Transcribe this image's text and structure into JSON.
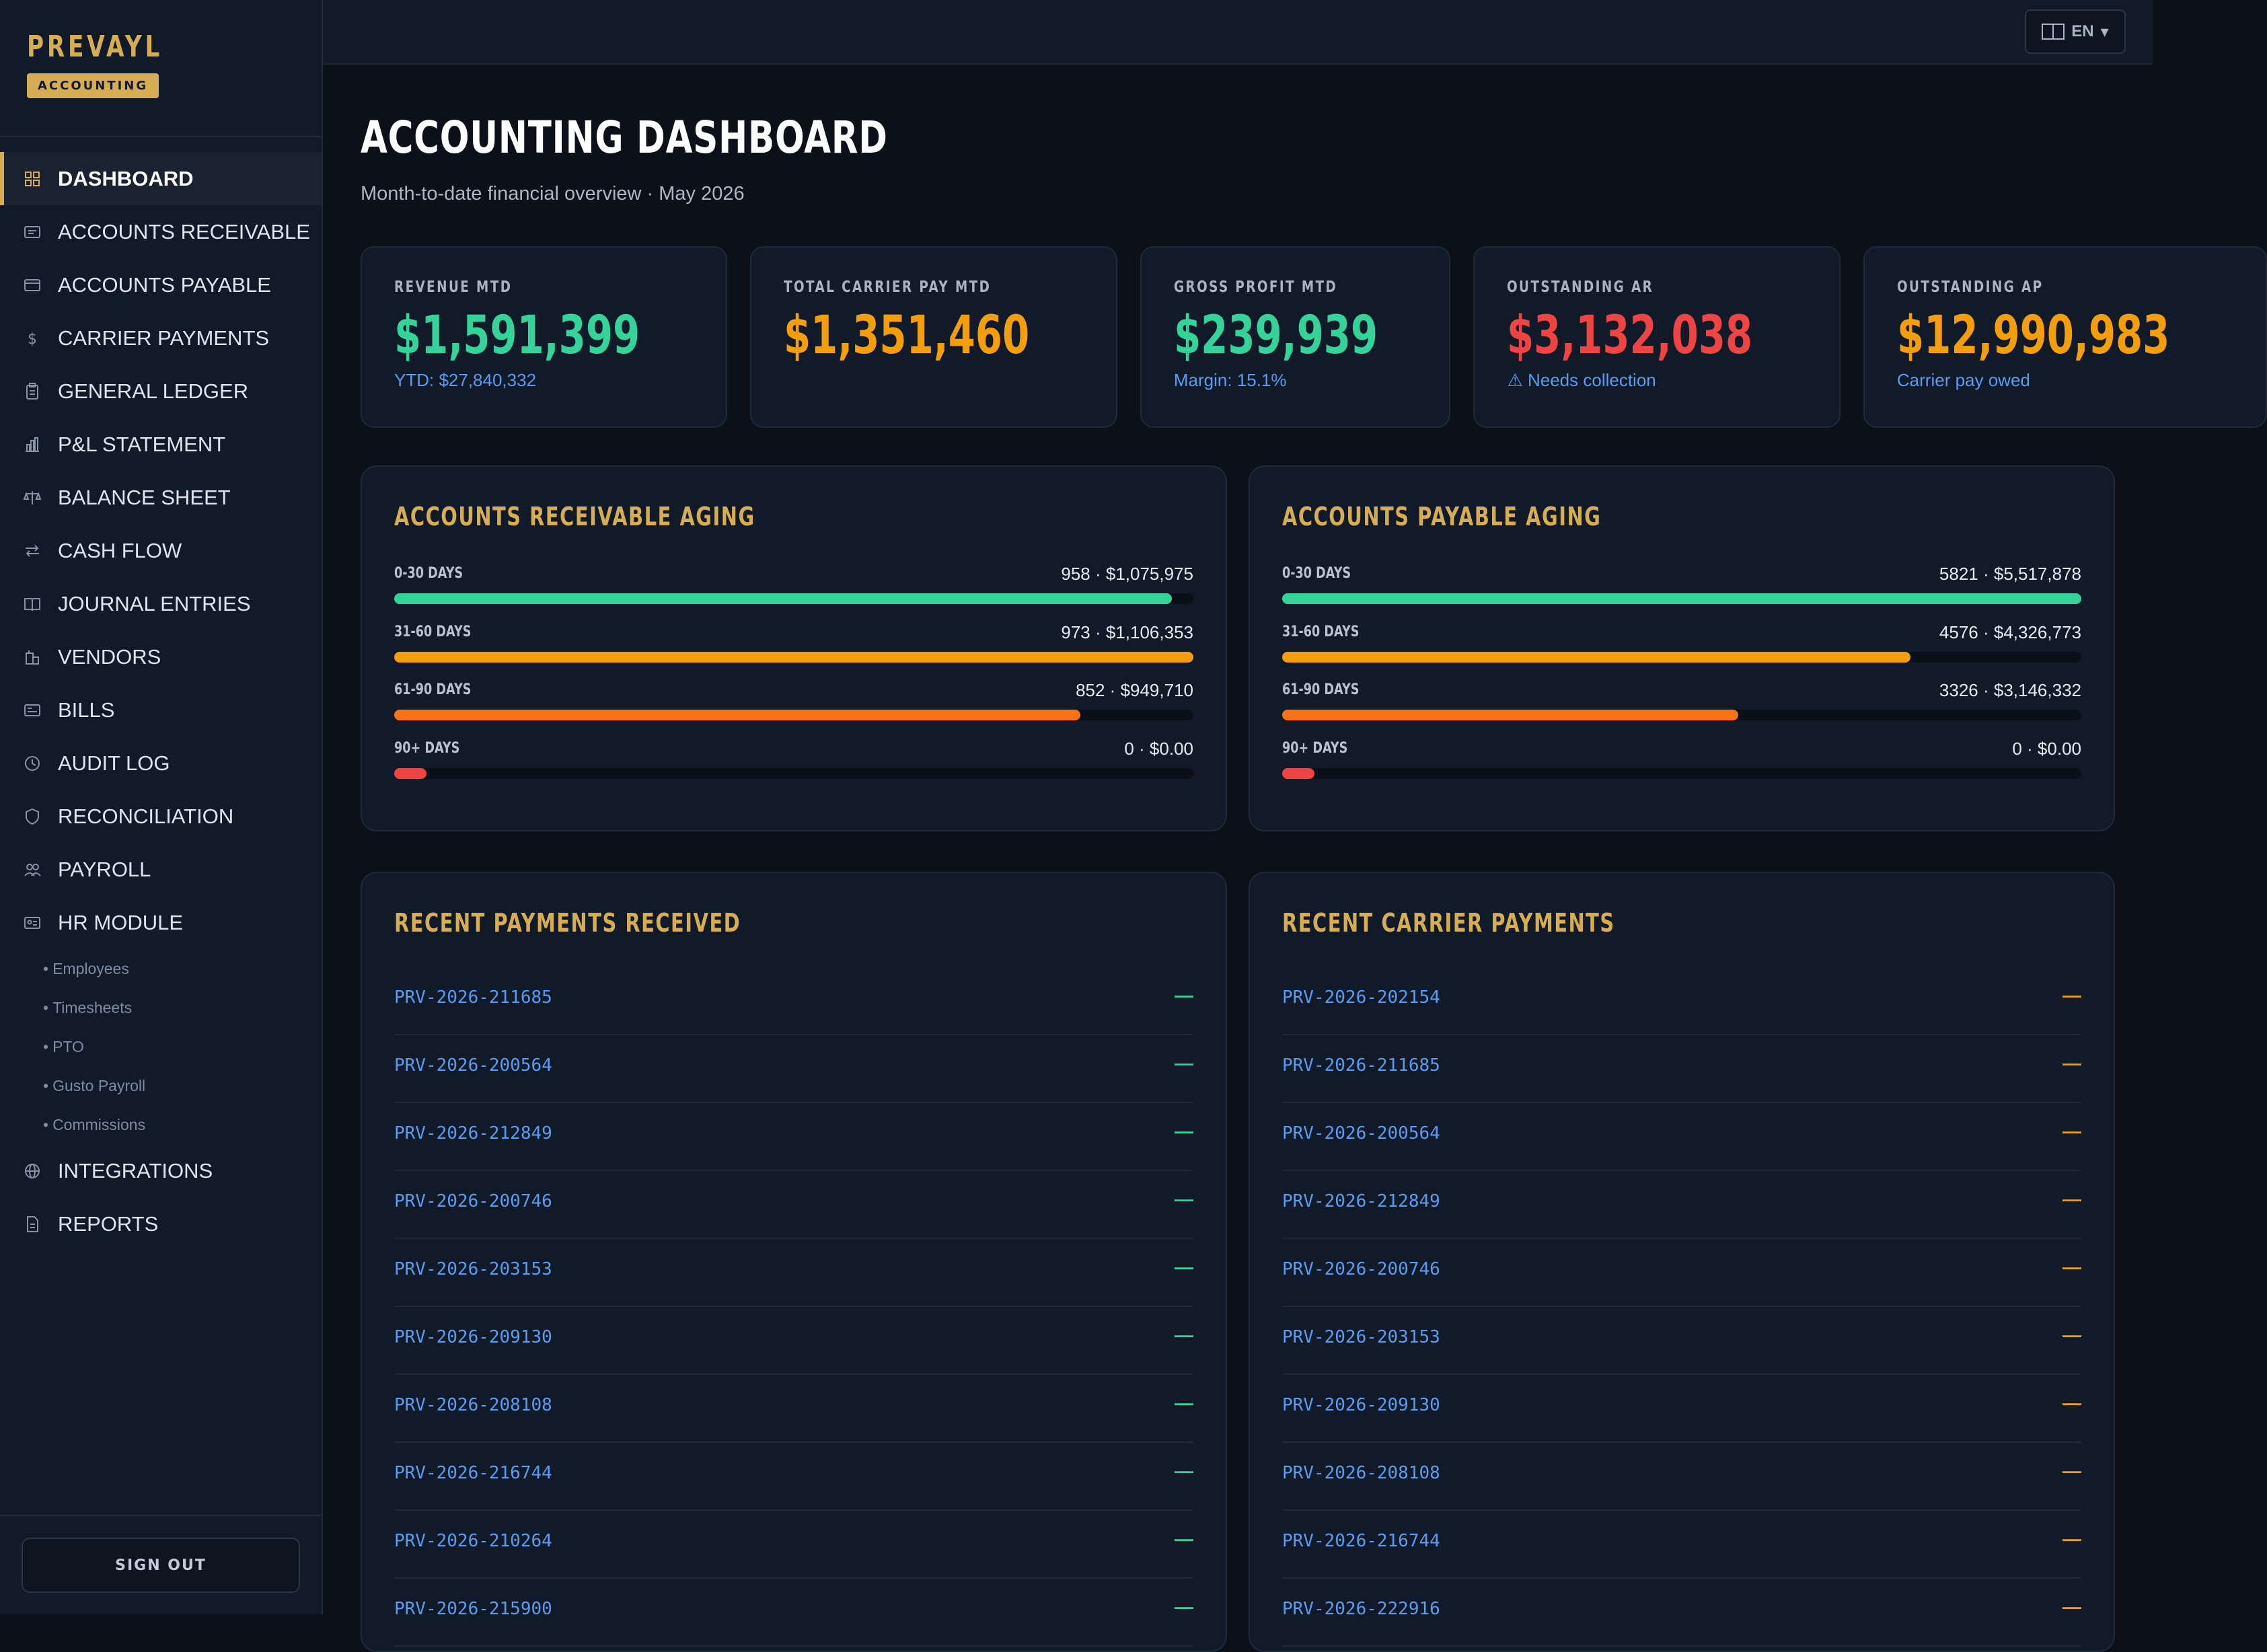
{
  "brand": {
    "name": "PREVAYL",
    "badge": "ACCOUNTING"
  },
  "sidebar": {
    "items": [
      {
        "label": "DASHBOARD",
        "icon": "grid-icon",
        "active": true
      },
      {
        "label": "ACCOUNTS RECEIVABLE",
        "icon": "receipt-icon"
      },
      {
        "label": "ACCOUNTS PAYABLE",
        "icon": "card-icon"
      },
      {
        "label": "CARRIER PAYMENTS",
        "icon": "dollar-icon"
      },
      {
        "label": "GENERAL LEDGER",
        "icon": "clipboard-icon"
      },
      {
        "label": "P&L STATEMENT",
        "icon": "bar-chart-icon"
      },
      {
        "label": "BALANCE SHEET",
        "icon": "scale-icon"
      },
      {
        "label": "CASH FLOW",
        "icon": "arrows-icon"
      },
      {
        "label": "JOURNAL ENTRIES",
        "icon": "book-icon"
      },
      {
        "label": "VENDORS",
        "icon": "building-icon"
      },
      {
        "label": "BILLS",
        "icon": "bill-icon"
      },
      {
        "label": "AUDIT LOG",
        "icon": "history-icon"
      },
      {
        "label": "RECONCILIATION",
        "icon": "shield-icon"
      },
      {
        "label": "PAYROLL",
        "icon": "users-icon"
      },
      {
        "label": "HR MODULE",
        "icon": "id-card-icon"
      }
    ],
    "sub_items": [
      "Employees",
      "Timesheets",
      "PTO",
      "Gusto Payroll",
      "Commissions"
    ],
    "items_after": [
      {
        "label": "INTEGRATIONS",
        "icon": "globe-icon"
      },
      {
        "label": "REPORTS",
        "icon": "document-icon"
      }
    ],
    "signout_label": "SIGN OUT"
  },
  "topbar": {
    "lang_label": "EN",
    "lang_caret": "▾"
  },
  "page": {
    "title": "ACCOUNTING DASHBOARD",
    "subtitle": "Month-to-date financial overview · May 2026"
  },
  "kpis": [
    {
      "label": "REVENUE MTD",
      "value": "$1,591,399",
      "sub": "YTD: $27,840,332",
      "color": "#34d399"
    },
    {
      "label": "TOTAL CARRIER PAY MTD",
      "value": "$1,351,460",
      "sub": "",
      "color": "#f59e0b"
    },
    {
      "label": "GROSS PROFIT MTD",
      "value": "$239,939",
      "sub": "Margin: 15.1%",
      "color": "#34d399"
    },
    {
      "label": "OUTSTANDING AR",
      "value": "$3,132,038",
      "sub": "⚠ Needs collection",
      "color": "#ef4444"
    },
    {
      "label": "OUTSTANDING AP",
      "value": "$12,990,983",
      "sub": "Carrier pay owed",
      "color": "#f59e0b"
    }
  ],
  "ar_aging": {
    "title": "ACCOUNTS RECEIVABLE AGING",
    "rows": [
      {
        "label": "0-30 DAYS",
        "value": "958 · $1,075,975",
        "fill": 0.973,
        "color": "#34d399"
      },
      {
        "label": "31-60 DAYS",
        "value": "973 · $1,106,353",
        "fill": 1.0,
        "color": "#f59e0b"
      },
      {
        "label": "61-90 DAYS",
        "value": "852 · $949,710",
        "fill": 0.859,
        "color": "#f97316"
      },
      {
        "label": "90+ DAYS",
        "value": "0 · $0.00",
        "fill": 0.04,
        "color": "#ef4444"
      }
    ]
  },
  "ap_aging": {
    "title": "ACCOUNTS PAYABLE AGING",
    "rows": [
      {
        "label": "0-30 DAYS",
        "value": "5821 · $5,517,878",
        "fill": 1.0,
        "color": "#34d399"
      },
      {
        "label": "31-60 DAYS",
        "value": "4576 · $4,326,773",
        "fill": 0.786,
        "color": "#f59e0b"
      },
      {
        "label": "61-90 DAYS",
        "value": "3326 · $3,146,332",
        "fill": 0.571,
        "color": "#f97316"
      },
      {
        "label": "90+ DAYS",
        "value": "0 · $0.00",
        "fill": 0.04,
        "color": "#ef4444"
      }
    ]
  },
  "recent_received": {
    "title": "RECENT PAYMENTS RECEIVED",
    "amount_color": "#34d399",
    "rows": [
      {
        "id": "PRV-2026-211685",
        "amount": "—"
      },
      {
        "id": "PRV-2026-200564",
        "amount": "—"
      },
      {
        "id": "PRV-2026-212849",
        "amount": "—"
      },
      {
        "id": "PRV-2026-200746",
        "amount": "—"
      },
      {
        "id": "PRV-2026-203153",
        "amount": "—"
      },
      {
        "id": "PRV-2026-209130",
        "amount": "—"
      },
      {
        "id": "PRV-2026-208108",
        "amount": "—"
      },
      {
        "id": "PRV-2026-216744",
        "amount": "—"
      },
      {
        "id": "PRV-2026-210264",
        "amount": "—"
      },
      {
        "id": "PRV-2026-215900",
        "amount": "—"
      }
    ]
  },
  "recent_carrier": {
    "title": "RECENT CARRIER PAYMENTS",
    "amount_color": "#f59e0b",
    "rows": [
      {
        "id": "PRV-2026-202154",
        "amount": "—"
      },
      {
        "id": "PRV-2026-211685",
        "amount": "—"
      },
      {
        "id": "PRV-2026-200564",
        "amount": "—"
      },
      {
        "id": "PRV-2026-212849",
        "amount": "—"
      },
      {
        "id": "PRV-2026-200746",
        "amount": "—"
      },
      {
        "id": "PRV-2026-203153",
        "amount": "—"
      },
      {
        "id": "PRV-2026-209130",
        "amount": "—"
      },
      {
        "id": "PRV-2026-208108",
        "amount": "—"
      },
      {
        "id": "PRV-2026-216744",
        "amount": "—"
      },
      {
        "id": "PRV-2026-222916",
        "amount": "—"
      }
    ]
  }
}
